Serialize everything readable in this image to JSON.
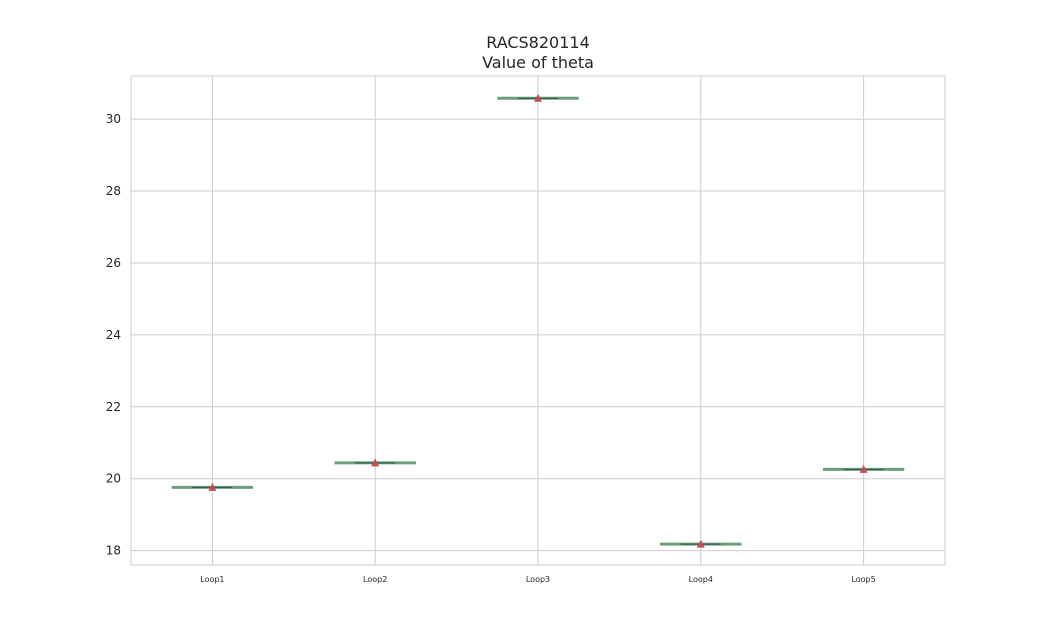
{
  "chart_data": {
    "type": "box",
    "title": "RACS820114",
    "subtitle": "Value of theta",
    "xlabel": "",
    "ylabel": "",
    "categories": [
      "Loop1",
      "Loop2",
      "Loop3",
      "Loop4",
      "Loop5"
    ],
    "values": [
      19.76,
      20.44,
      30.58,
      18.18,
      20.26
    ],
    "means": [
      19.76,
      20.44,
      30.58,
      18.18,
      20.26
    ],
    "ylim": [
      17.6,
      31.2
    ],
    "yticks": [
      18,
      20,
      22,
      24,
      26,
      28,
      30
    ],
    "grid": true,
    "legend": "none",
    "colors": {
      "box_line": "#6b9f7a",
      "median_line": "#2f4f4f",
      "mean_marker": "#c44e52",
      "grid": "#cccccc"
    }
  }
}
